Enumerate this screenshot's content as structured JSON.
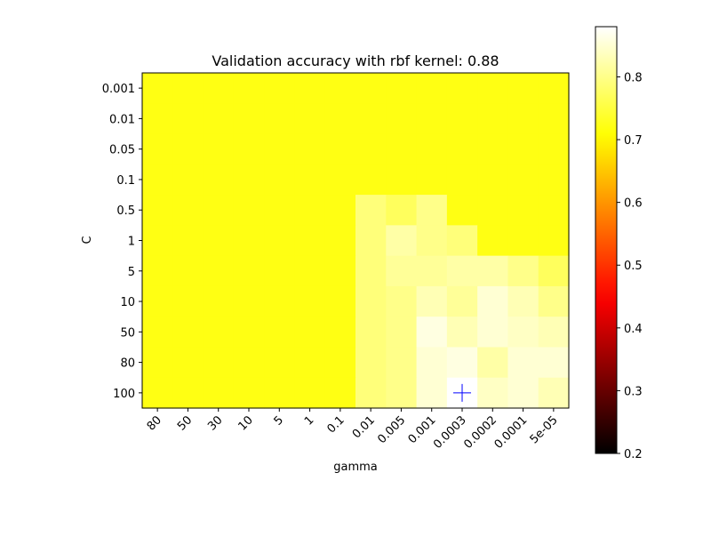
{
  "chart_data": {
    "type": "heatmap",
    "title": "Validation accuracy with rbf kernel: 0.88",
    "xlabel": "gamma",
    "ylabel": "C",
    "x": [
      "80",
      "50",
      "30",
      "10",
      "5",
      "1",
      "0.1",
      "0.01",
      "0.005",
      "0.001",
      "0.0003",
      "0.0002",
      "0.0001",
      "5e-05"
    ],
    "y": [
      "0.001",
      "0.01",
      "0.05",
      "0.1",
      "0.5",
      "1",
      "5",
      "10",
      "50",
      "80",
      "100"
    ],
    "values": [
      [
        0.72,
        0.72,
        0.72,
        0.72,
        0.72,
        0.72,
        0.72,
        0.72,
        0.72,
        0.72,
        0.72,
        0.72,
        0.72,
        0.72
      ],
      [
        0.72,
        0.72,
        0.72,
        0.72,
        0.72,
        0.72,
        0.72,
        0.72,
        0.72,
        0.72,
        0.72,
        0.72,
        0.72,
        0.72
      ],
      [
        0.72,
        0.72,
        0.72,
        0.72,
        0.72,
        0.72,
        0.72,
        0.72,
        0.72,
        0.72,
        0.72,
        0.72,
        0.72,
        0.72
      ],
      [
        0.72,
        0.72,
        0.72,
        0.72,
        0.72,
        0.72,
        0.72,
        0.72,
        0.72,
        0.72,
        0.72,
        0.72,
        0.72,
        0.72
      ],
      [
        0.72,
        0.72,
        0.72,
        0.72,
        0.72,
        0.72,
        0.72,
        0.79,
        0.77,
        0.8,
        0.72,
        0.72,
        0.72,
        0.72
      ],
      [
        0.72,
        0.72,
        0.72,
        0.72,
        0.72,
        0.72,
        0.72,
        0.79,
        0.82,
        0.8,
        0.79,
        0.72,
        0.72,
        0.72
      ],
      [
        0.72,
        0.72,
        0.72,
        0.72,
        0.72,
        0.72,
        0.72,
        0.79,
        0.81,
        0.81,
        0.82,
        0.82,
        0.8,
        0.77
      ],
      [
        0.72,
        0.72,
        0.72,
        0.72,
        0.72,
        0.72,
        0.72,
        0.79,
        0.8,
        0.83,
        0.81,
        0.85,
        0.83,
        0.8
      ],
      [
        0.72,
        0.72,
        0.72,
        0.72,
        0.72,
        0.72,
        0.72,
        0.79,
        0.8,
        0.86,
        0.83,
        0.85,
        0.84,
        0.83
      ],
      [
        0.72,
        0.72,
        0.72,
        0.72,
        0.72,
        0.72,
        0.72,
        0.79,
        0.8,
        0.85,
        0.86,
        0.82,
        0.85,
        0.85
      ],
      [
        0.72,
        0.72,
        0.72,
        0.72,
        0.72,
        0.72,
        0.72,
        0.79,
        0.8,
        0.85,
        0.88,
        0.84,
        0.85,
        0.83
      ]
    ],
    "best": {
      "x": "0.0003",
      "y": "100"
    },
    "marker_color": "#0000ff",
    "colormap": "hot",
    "vmin": 0.2,
    "vmax": 0.88,
    "colorbar_ticks": [
      "0.2",
      "0.3",
      "0.4",
      "0.5",
      "0.6",
      "0.7",
      "0.8"
    ],
    "colorbar_position": "right",
    "grid": false
  }
}
